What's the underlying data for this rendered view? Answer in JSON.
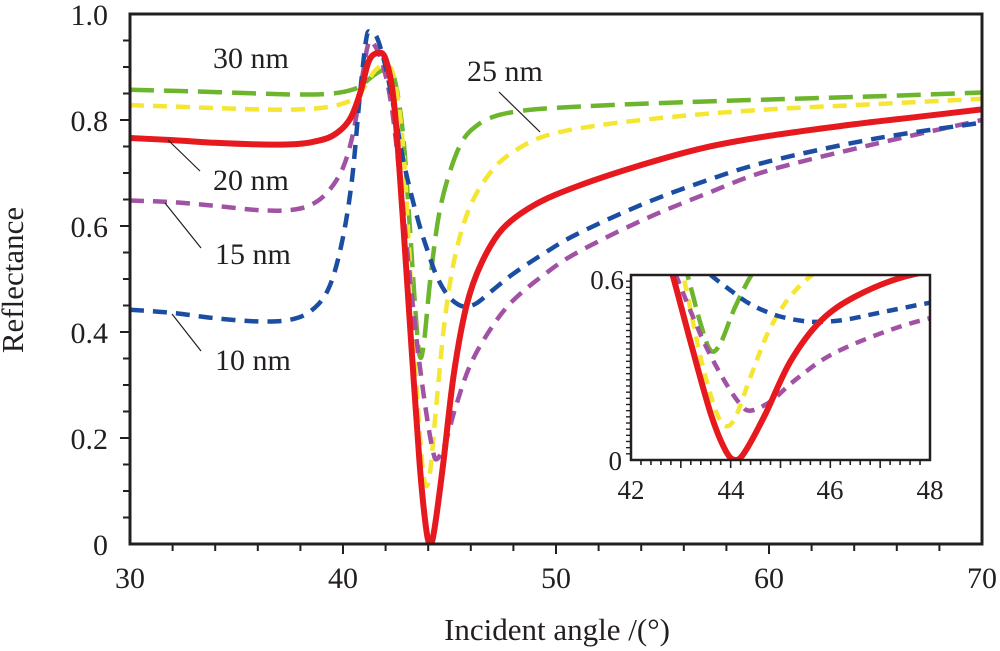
{
  "chart_data": {
    "type": "line",
    "title": "",
    "xlabel": "Incident angle /(°)",
    "ylabel": "Reflectance",
    "xlim": [
      30,
      70
    ],
    "ylim": [
      0,
      1.0
    ],
    "x_ticks": [
      "30",
      "40",
      "50",
      "60",
      "70"
    ],
    "y_ticks": [
      "0",
      "0.2",
      "0.4",
      "0.6",
      "0.8",
      "1.0"
    ],
    "grid": false,
    "series": [
      {
        "name": "30 nm",
        "color": "#6cb52d",
        "dash": "long-dash",
        "x": [
          30,
          33,
          36,
          38,
          39.5,
          40.5,
          41.0,
          41.5,
          42.0,
          42.4,
          42.8,
          43.1,
          43.4,
          43.6,
          43.8,
          44.1,
          44.5,
          45.0,
          45.6,
          46.3,
          47.2,
          48.5,
          50,
          53,
          57,
          62,
          66,
          70
        ],
        "y": [
          0.857,
          0.854,
          0.85,
          0.848,
          0.85,
          0.858,
          0.87,
          0.886,
          0.895,
          0.88,
          0.78,
          0.62,
          0.44,
          0.355,
          0.38,
          0.5,
          0.62,
          0.7,
          0.76,
          0.79,
          0.808,
          0.818,
          0.823,
          0.829,
          0.835,
          0.841,
          0.846,
          0.852
        ]
      },
      {
        "name": "25 nm",
        "color": "#f4e633",
        "dash": "dash",
        "x": [
          30,
          33,
          36,
          38,
          39.5,
          40.5,
          41.0,
          41.5,
          42.0,
          42.4,
          42.8,
          43.1,
          43.4,
          43.7,
          43.9,
          44.1,
          44.4,
          44.8,
          45.3,
          46.0,
          47.0,
          48.0,
          49.5,
          52,
          56,
          60,
          65,
          70
        ],
        "y": [
          0.828,
          0.824,
          0.82,
          0.82,
          0.826,
          0.84,
          0.862,
          0.893,
          0.903,
          0.88,
          0.76,
          0.56,
          0.33,
          0.16,
          0.11,
          0.14,
          0.27,
          0.43,
          0.55,
          0.64,
          0.705,
          0.74,
          0.77,
          0.79,
          0.808,
          0.82,
          0.83,
          0.84
        ]
      },
      {
        "name": "20 nm",
        "color": "#e5191e",
        "dash": "solid",
        "x": [
          30,
          32,
          34,
          36,
          37.5,
          38.5,
          39.5,
          40.3,
          40.8,
          41.2,
          41.6,
          42.0,
          42.4,
          42.8,
          43.2,
          43.6,
          43.9,
          44.1,
          44.3,
          44.7,
          45.2,
          45.8,
          46.5,
          47.5,
          49,
          51,
          54,
          57,
          60,
          64,
          67,
          70
        ],
        "y": [
          0.766,
          0.762,
          0.757,
          0.754,
          0.754,
          0.758,
          0.77,
          0.8,
          0.85,
          0.91,
          0.926,
          0.915,
          0.83,
          0.62,
          0.38,
          0.15,
          0.03,
          0.0,
          0.03,
          0.15,
          0.32,
          0.45,
          0.53,
          0.595,
          0.64,
          0.675,
          0.715,
          0.748,
          0.77,
          0.792,
          0.806,
          0.82
        ]
      },
      {
        "name": "15 nm",
        "color": "#a252a4",
        "dash": "dash",
        "x": [
          30,
          32,
          34,
          36,
          37.5,
          38.5,
          39.3,
          40.0,
          40.5,
          40.9,
          41.2,
          41.5,
          41.9,
          42.3,
          42.7,
          43.1,
          43.5,
          43.9,
          44.2,
          44.4,
          44.8,
          45.3,
          46.0,
          47.0,
          48.0,
          49.5,
          51,
          54,
          57,
          60,
          65,
          70
        ],
        "y": [
          0.648,
          0.645,
          0.638,
          0.63,
          0.63,
          0.64,
          0.665,
          0.71,
          0.78,
          0.88,
          0.945,
          0.94,
          0.9,
          0.82,
          0.68,
          0.52,
          0.37,
          0.25,
          0.18,
          0.16,
          0.19,
          0.26,
          0.34,
          0.41,
          0.46,
          0.51,
          0.55,
          0.61,
          0.66,
          0.705,
          0.755,
          0.8
        ]
      },
      {
        "name": "10 nm",
        "color": "#1b4ea3",
        "dash": "dash",
        "x": [
          30,
          32,
          34,
          36,
          37.5,
          38.5,
          39.3,
          39.9,
          40.4,
          40.8,
          41.1,
          41.3,
          41.6,
          42.0,
          42.4,
          42.8,
          43.2,
          43.6,
          44.0,
          44.4,
          44.9,
          45.4,
          45.8,
          46.3,
          47.0,
          48.0,
          49.5,
          51,
          54,
          57,
          60,
          65,
          70
        ],
        "y": [
          0.442,
          0.436,
          0.426,
          0.42,
          0.423,
          0.44,
          0.48,
          0.56,
          0.68,
          0.85,
          0.955,
          0.965,
          0.955,
          0.9,
          0.82,
          0.73,
          0.66,
          0.6,
          0.55,
          0.505,
          0.47,
          0.452,
          0.448,
          0.455,
          0.478,
          0.51,
          0.55,
          0.585,
          0.64,
          0.685,
          0.722,
          0.765,
          0.795
        ]
      }
    ],
    "annotations": [
      {
        "text": "30 nm",
        "target": "30 nm"
      },
      {
        "text": "25 nm",
        "target": "25 nm"
      },
      {
        "text": "20 nm",
        "target": "20 nm"
      },
      {
        "text": "15 nm",
        "target": "15 nm"
      },
      {
        "text": "10 nm",
        "target": "10 nm"
      }
    ],
    "inset": {
      "type": "line",
      "xlim": [
        42,
        48
      ],
      "ylim": [
        0,
        0.6
      ],
      "x_ticks": [
        "42",
        "44",
        "46",
        "48"
      ],
      "y_ticks": [
        "0",
        "0.6"
      ],
      "note": "zoomed view of the same five series"
    }
  }
}
